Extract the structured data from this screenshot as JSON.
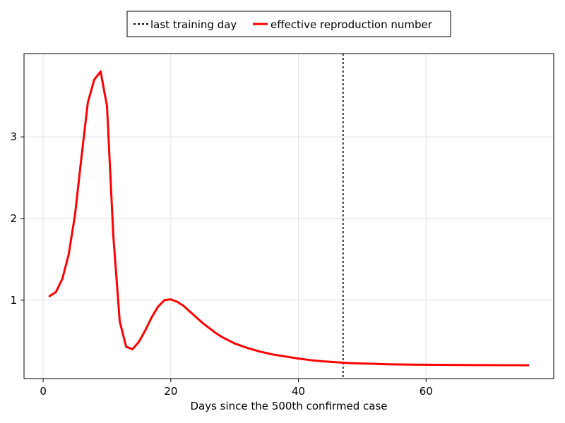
{
  "chart_data": {
    "type": "line",
    "title": "",
    "xlabel": "Days since the 500th confirmed case",
    "ylabel": "",
    "xlim": [
      -3,
      80
    ],
    "ylim": [
      0.04,
      4.02
    ],
    "x_ticks": [
      0,
      20,
      40,
      60
    ],
    "y_ticks": [
      1,
      2,
      3
    ],
    "x_tick_labels": [
      "0",
      "20",
      "40",
      "60"
    ],
    "y_tick_labels": [
      "1",
      "2",
      "3"
    ],
    "grid": true,
    "legend": {
      "placement": "top-center",
      "entries": [
        {
          "name": "last training day",
          "style": "dashed",
          "color": "#000000"
        },
        {
          "name": "effective reproduction number",
          "style": "solid",
          "color": "#ff0000"
        }
      ]
    },
    "vertical_lines": [
      {
        "name": "last training day",
        "x": 47,
        "style": "dashed",
        "color": "#000000"
      }
    ],
    "series": [
      {
        "name": "effective reproduction number",
        "color": "#ff0000",
        "x": [
          1,
          2,
          3,
          4,
          5,
          6,
          7,
          8,
          9,
          10,
          11,
          12,
          13,
          14,
          15,
          16,
          17,
          18,
          19,
          20,
          21,
          22,
          23,
          24,
          25,
          26,
          27,
          28,
          29,
          30,
          32,
          34,
          36,
          38,
          40,
          42,
          44,
          46,
          48,
          50,
          52,
          54,
          56,
          58,
          60,
          62,
          64,
          66,
          68,
          70,
          72,
          74,
          76
        ],
        "values": [
          1.05,
          1.1,
          1.26,
          1.56,
          2.05,
          2.75,
          3.42,
          3.7,
          3.8,
          3.38,
          1.78,
          0.74,
          0.43,
          0.4,
          0.49,
          0.63,
          0.79,
          0.92,
          1.0,
          1.01,
          0.98,
          0.93,
          0.86,
          0.79,
          0.72,
          0.66,
          0.6,
          0.55,
          0.51,
          0.47,
          0.415,
          0.37,
          0.335,
          0.31,
          0.285,
          0.265,
          0.25,
          0.24,
          0.23,
          0.225,
          0.22,
          0.215,
          0.213,
          0.211,
          0.209,
          0.208,
          0.207,
          0.206,
          0.205,
          0.205,
          0.204,
          0.204,
          0.203
        ]
      }
    ]
  },
  "colors": {
    "frame": "#000000",
    "grid": "#e2e2e2",
    "background": "#ffffff"
  }
}
